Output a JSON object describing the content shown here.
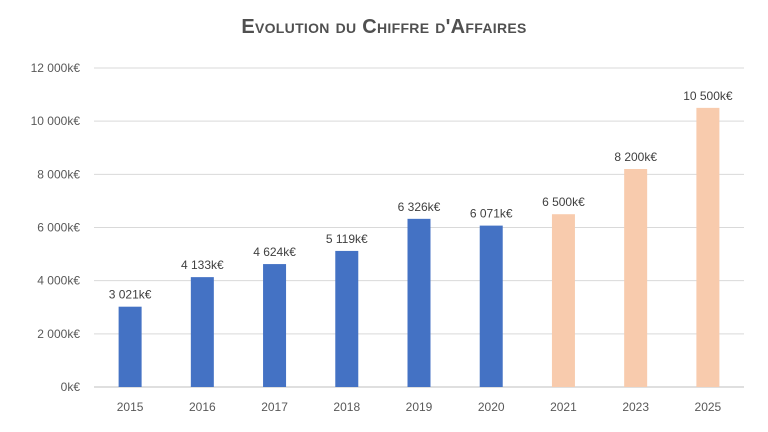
{
  "chart_data": {
    "type": "bar",
    "title": "Evolution du Chiffre d'Affaires",
    "xlabel": "",
    "ylabel": "",
    "ylim": [
      0,
      12000
    ],
    "y_ticks": [
      "0k€",
      "2 000k€",
      "4 000k€",
      "6 000k€",
      "8 000k€",
      "10 000k€",
      "12 000k€"
    ],
    "grid": true,
    "categories": [
      "2015",
      "2016",
      "2017",
      "2018",
      "2019",
      "2020",
      "2021",
      "2023",
      "2025"
    ],
    "values": [
      3021,
      4133,
      4624,
      5119,
      6326,
      6071,
      6500,
      8200,
      10500
    ],
    "data_labels": [
      "3 021k€",
      "4 133k€",
      "4 624k€",
      "5 119k€",
      "6 326k€",
      "6 071k€",
      "6 500k€",
      "8 200k€",
      "10 500k€"
    ],
    "bar_colors": [
      "#4472c4",
      "#4472c4",
      "#4472c4",
      "#4472c4",
      "#4472c4",
      "#4472c4",
      "#f8cbad",
      "#f8cbad",
      "#f8cbad"
    ]
  }
}
